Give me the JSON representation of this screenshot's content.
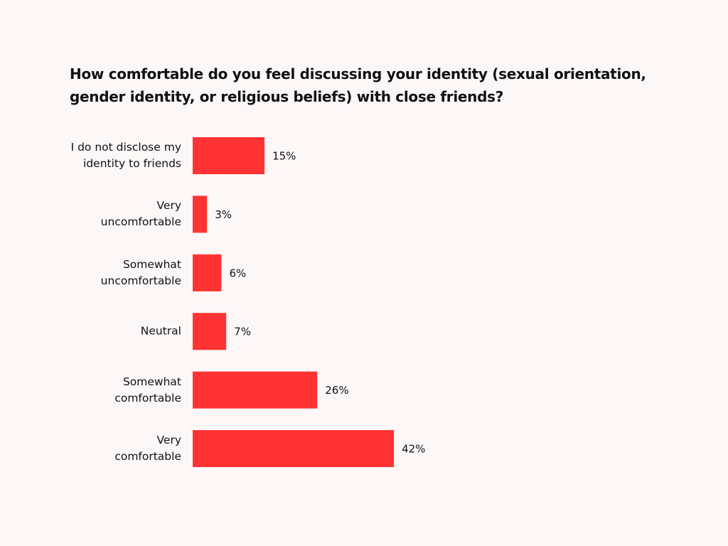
{
  "chart_data": {
    "type": "bar",
    "orientation": "horizontal",
    "title": "How comfortable do you feel discussing your identity (sexual orientation,\ngender identity, or religious beliefs) with close friends?",
    "categories": [
      "I do not disclose my\nidentity to friends",
      "Very\nuncomfortable",
      "Somewhat\nuncomfortable",
      "Neutral",
      "Somewhat\ncomfortable",
      "Very\ncomfortable"
    ],
    "values": [
      15,
      3,
      6,
      7,
      26,
      42
    ],
    "value_labels": [
      "15%",
      "3%",
      "6%",
      "7%",
      "26%",
      "42%"
    ],
    "color": "#ff3333"
  }
}
